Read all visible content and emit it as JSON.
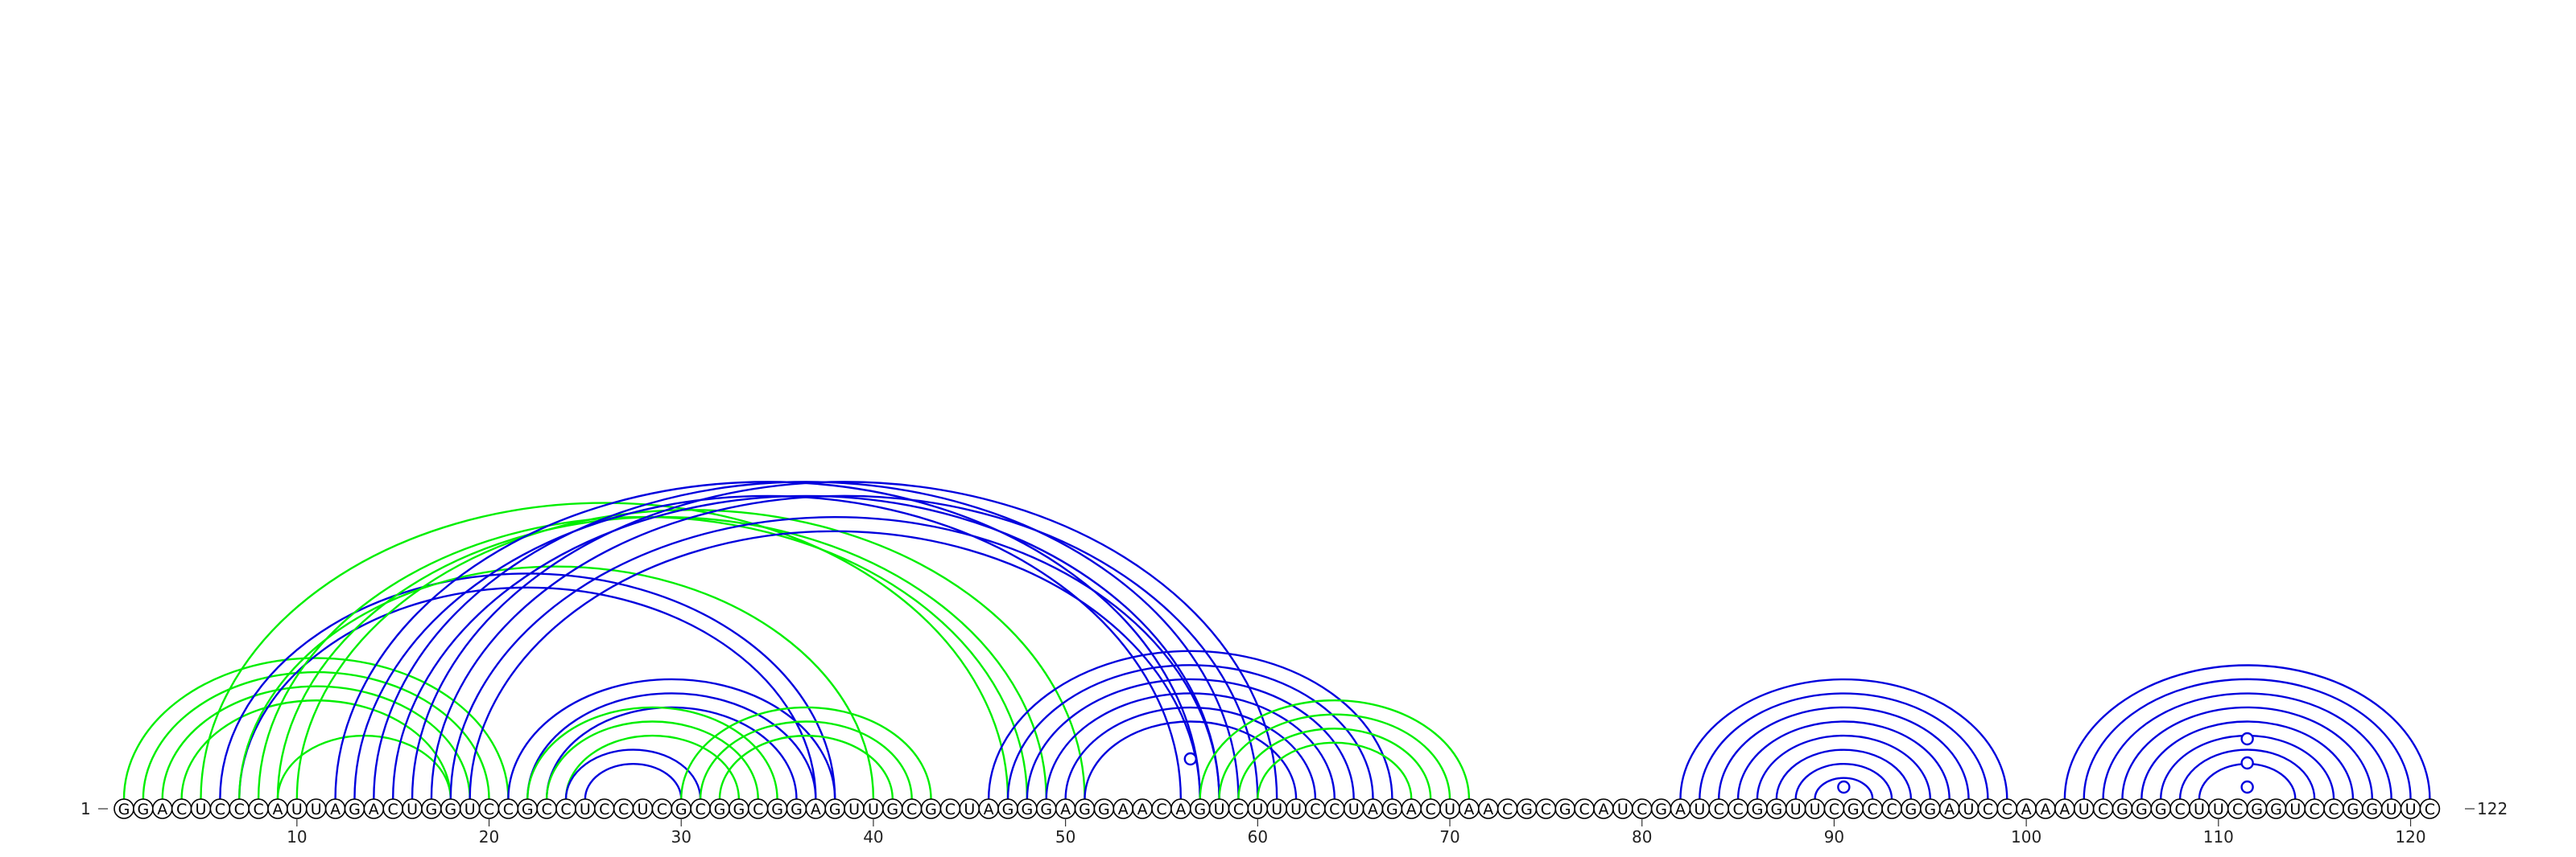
{
  "sequence": "GGACUCCCAUUAGACUGGUCCGCCUCCUCGCGGCGGAGUUGCGCUAGGGAGGAACAGUCUUUCCUAGACUAACGCGCAUCGAUCCGGUUCGCCGGAUCCAAAUCGGGCUUCGGUCCGGUUC",
  "start_label": "1",
  "end_label": "122",
  "ticks": [
    {
      "pos": 10,
      "label": "10"
    },
    {
      "pos": 20,
      "label": "20"
    },
    {
      "pos": 30,
      "label": "30"
    },
    {
      "pos": 40,
      "label": "40"
    },
    {
      "pos": 50,
      "label": "50"
    },
    {
      "pos": 60,
      "label": "60"
    },
    {
      "pos": 70,
      "label": "70"
    },
    {
      "pos": 80,
      "label": "80"
    },
    {
      "pos": 90,
      "label": "90"
    },
    {
      "pos": 100,
      "label": "100"
    },
    {
      "pos": 110,
      "label": "110"
    },
    {
      "pos": 120,
      "label": "120"
    }
  ],
  "colors": {
    "blue": "#0000dd",
    "green": "#00ee00"
  },
  "arcs": [
    {
      "i": 1,
      "j": 21,
      "color": "green"
    },
    {
      "i": 2,
      "j": 20,
      "color": "green"
    },
    {
      "i": 3,
      "j": 19,
      "color": "green"
    },
    {
      "i": 4,
      "j": 18,
      "color": "green"
    },
    {
      "i": 5,
      "j": 47,
      "color": "green"
    },
    {
      "i": 6,
      "j": 38,
      "color": "blue"
    },
    {
      "i": 7,
      "j": 37,
      "color": "blue"
    },
    {
      "i": 7,
      "j": 40,
      "color": "green"
    },
    {
      "i": 8,
      "j": 48,
      "color": "green"
    },
    {
      "i": 9,
      "j": 49,
      "color": "green"
    },
    {
      "i": 9,
      "j": 18,
      "color": "green"
    },
    {
      "i": 10,
      "j": 51,
      "color": "green"
    },
    {
      "i": 12,
      "j": 57,
      "color": "blue"
    },
    {
      "i": 13,
      "j": 56,
      "color": "blue"
    },
    {
      "i": 14,
      "j": 59,
      "color": "blue"
    },
    {
      "i": 15,
      "j": 58,
      "color": "blue"
    },
    {
      "i": 16,
      "j": 61,
      "color": "blue"
    },
    {
      "i": 17,
      "j": 60,
      "color": "blue"
    },
    {
      "i": 18,
      "j": 58,
      "color": "blue"
    },
    {
      "i": 19,
      "j": 57,
      "color": "blue"
    },
    {
      "i": 21,
      "j": 38,
      "color": "blue"
    },
    {
      "i": 22,
      "j": 37,
      "color": "blue"
    },
    {
      "i": 23,
      "j": 36,
      "color": "blue"
    },
    {
      "i": 22,
      "j": 35,
      "color": "green"
    },
    {
      "i": 23,
      "j": 34,
      "color": "green"
    },
    {
      "i": 24,
      "j": 33,
      "color": "green"
    },
    {
      "i": 24,
      "j": 31,
      "color": "blue"
    },
    {
      "i": 25,
      "j": 30,
      "color": "blue"
    },
    {
      "i": 30,
      "j": 43,
      "color": "green"
    },
    {
      "i": 31,
      "j": 42,
      "color": "green"
    },
    {
      "i": 32,
      "j": 41,
      "color": "green"
    },
    {
      "i": 46,
      "j": 67,
      "color": "blue"
    },
    {
      "i": 47,
      "j": 66,
      "color": "blue"
    },
    {
      "i": 48,
      "j": 65,
      "color": "blue"
    },
    {
      "i": 49,
      "j": 64,
      "color": "blue"
    },
    {
      "i": 50,
      "j": 63,
      "color": "blue"
    },
    {
      "i": 51,
      "j": 62,
      "color": "blue"
    },
    {
      "i": 57,
      "j": 71,
      "color": "green"
    },
    {
      "i": 58,
      "j": 70,
      "color": "green"
    },
    {
      "i": 59,
      "j": 69,
      "color": "green"
    },
    {
      "i": 60,
      "j": 68,
      "color": "green"
    },
    {
      "i": 82,
      "j": 99,
      "color": "blue"
    },
    {
      "i": 83,
      "j": 98,
      "color": "blue"
    },
    {
      "i": 84,
      "j": 97,
      "color": "blue"
    },
    {
      "i": 85,
      "j": 96,
      "color": "blue"
    },
    {
      "i": 86,
      "j": 95,
      "color": "blue"
    },
    {
      "i": 87,
      "j": 94,
      "color": "blue"
    },
    {
      "i": 88,
      "j": 93,
      "color": "blue"
    },
    {
      "i": 89,
      "j": 92,
      "color": "blue"
    },
    {
      "i": 102,
      "j": 121,
      "color": "blue"
    },
    {
      "i": 103,
      "j": 120,
      "color": "blue"
    },
    {
      "i": 104,
      "j": 119,
      "color": "blue"
    },
    {
      "i": 105,
      "j": 118,
      "color": "blue"
    },
    {
      "i": 106,
      "j": 117,
      "color": "blue"
    },
    {
      "i": 107,
      "j": 116,
      "color": "blue"
    },
    {
      "i": 108,
      "j": 115,
      "color": "blue"
    },
    {
      "i": 109,
      "j": 114,
      "color": "blue"
    }
  ],
  "markers": [
    {
      "pos": 56.5,
      "height": 40,
      "color": "blue"
    },
    {
      "pos": 90.5,
      "height": 12,
      "color": "blue"
    },
    {
      "pos": 111.5,
      "height": 60,
      "color": "blue"
    },
    {
      "pos": 111.5,
      "height": 36,
      "color": "blue"
    },
    {
      "pos": 111.5,
      "height": 12,
      "color": "blue"
    }
  ]
}
